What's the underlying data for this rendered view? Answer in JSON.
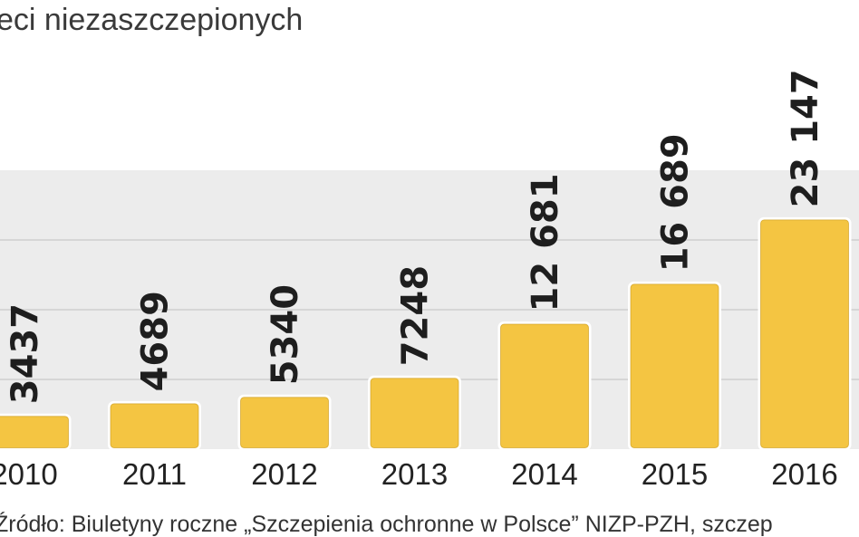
{
  "title": "eci niezaszczepionych",
  "source": "Źródło: Biuletyny roczne „Szczepienia ochronne w Polsce” NIZP-PZH, szczep",
  "colors": {
    "bar": "#f4c542",
    "bar_stroke": "#c99a1a",
    "plot_background": "#ececec",
    "gridline": "#d6d6d6"
  },
  "chart_data": {
    "type": "bar",
    "title": "eci niezaszczepionych",
    "categories": [
      "2010",
      "2011",
      "2012",
      "2013",
      "2014",
      "2015",
      "2016"
    ],
    "values": [
      3437,
      4689,
      5340,
      7248,
      12681,
      16689,
      23147
    ],
    "value_labels": [
      "3437",
      "4689",
      "5340",
      "7248",
      "12 681",
      "16 689",
      "23 147"
    ],
    "ylim": [
      0,
      28000
    ],
    "grid": true,
    "legend": "none"
  }
}
